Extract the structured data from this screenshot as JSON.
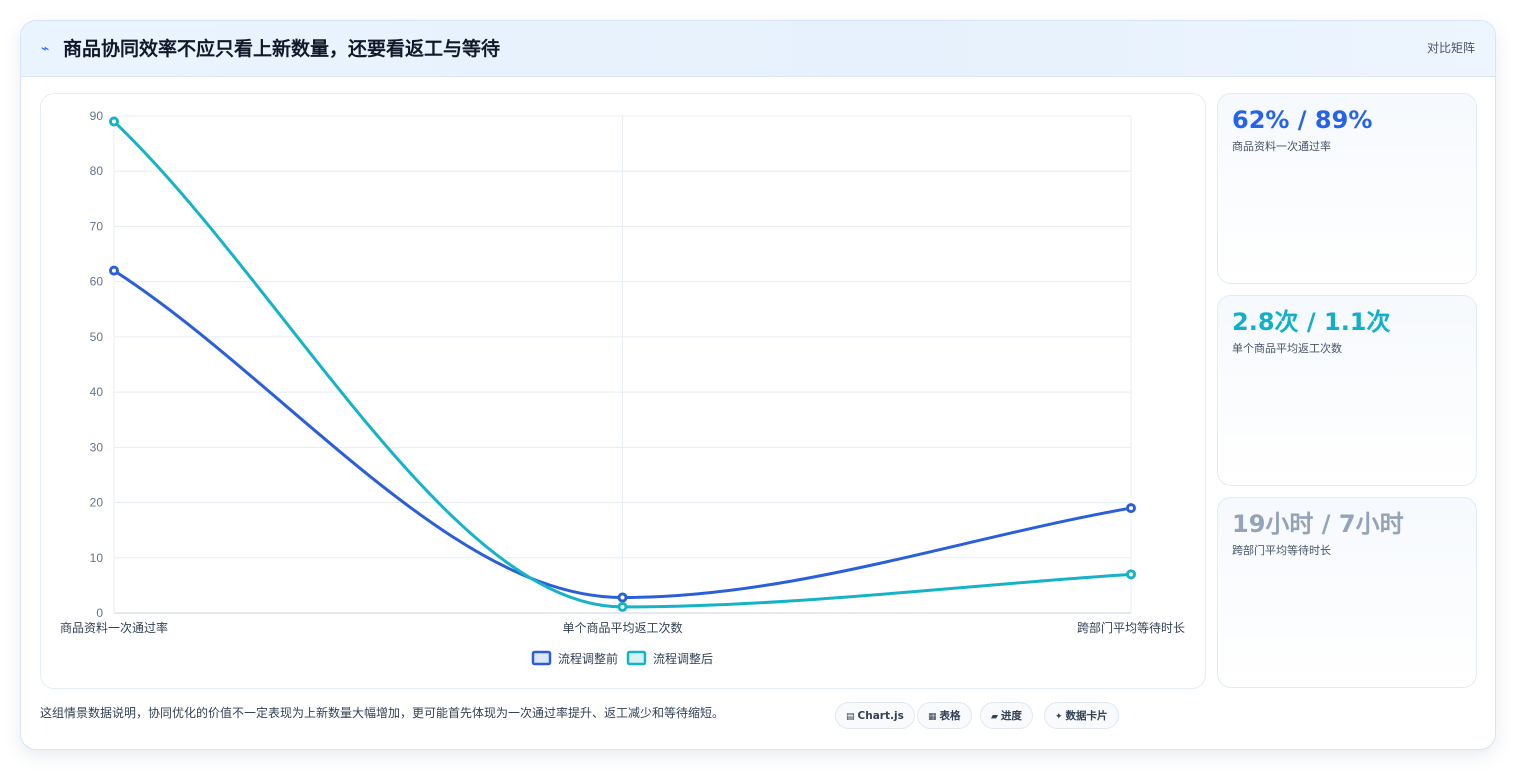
{
  "header": {
    "title": "商品协同效率不应只看上新数量，还要看返工与等待",
    "badge": "对比矩阵"
  },
  "chart_data": {
    "type": "line",
    "categories": [
      "商品资料一次通过率",
      "单个商品平均返工次数",
      "跨部门平均等待时长"
    ],
    "series": [
      {
        "name": "流程调整前",
        "values": [
          62,
          2.8,
          19
        ],
        "color": "#2b5fd9"
      },
      {
        "name": "流程调整后",
        "values": [
          89,
          1.1,
          7
        ],
        "color": "#16b3c8"
      }
    ],
    "ylim": [
      0,
      90
    ],
    "yticks": [
      0,
      10,
      20,
      30,
      40,
      50,
      60,
      70,
      80,
      90
    ],
    "legend_position": "bottom",
    "grid": true
  },
  "stats": [
    {
      "value": "62% / 89%",
      "label": "商品资料一次通过率",
      "color": "#2563eb"
    },
    {
      "value": "2.8次 / 1.1次",
      "label": "单个商品平均返工次数",
      "color": "#12b0c8"
    },
    {
      "value": "19小时 / 7小时",
      "label": "跨部门平均等待时长",
      "color": "#94a3b8"
    }
  ],
  "footer": {
    "note": "这组情景数据说明，协同优化的价值不一定表现为上新数量大幅增加，更可能首先体现为一次通过率提升、返工减少和等待缩短。",
    "chips": [
      {
        "icon": "chart-icon",
        "glyph": "▤",
        "label": "Chart.js"
      },
      {
        "icon": "table-icon",
        "glyph": "▦",
        "label": "表格"
      },
      {
        "icon": "progress-icon",
        "glyph": "▰",
        "label": "进度"
      },
      {
        "icon": "card-icon",
        "glyph": "✦",
        "label": "数据卡片"
      }
    ]
  }
}
